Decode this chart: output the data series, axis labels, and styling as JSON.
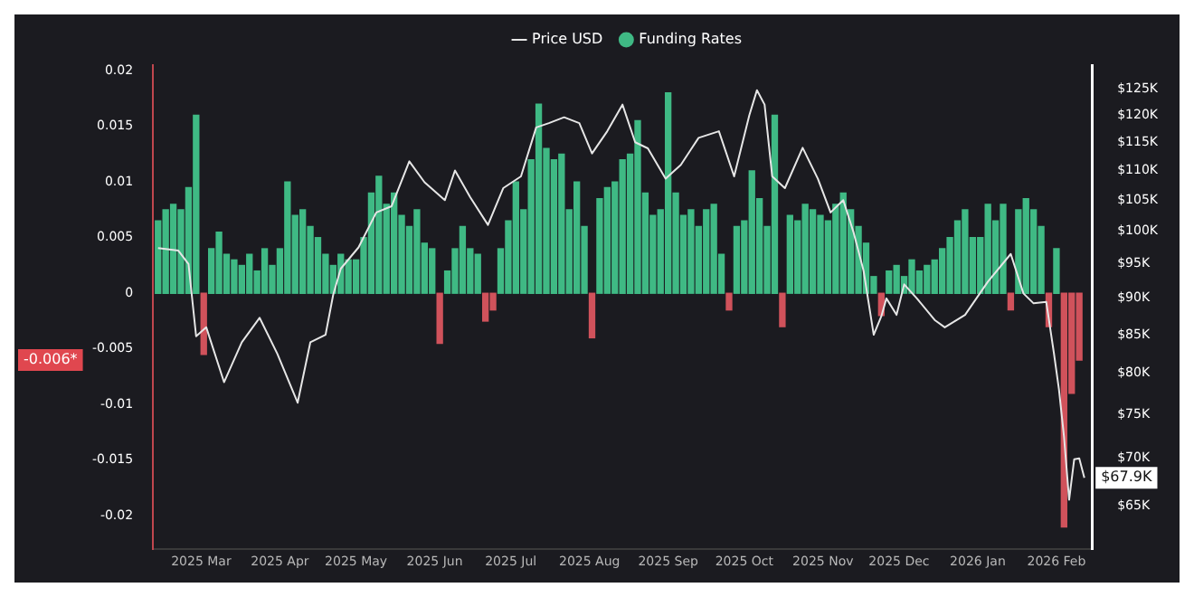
{
  "chart_data": {
    "type": "bar",
    "legend": "top",
    "log": "y2",
    "xlim": [
      "2025-02-10",
      "2026-02-15"
    ],
    "xticks": [
      {
        "value": "2025-03-01",
        "label": "2025 Mar"
      },
      {
        "value": "2025-04-01",
        "label": "2025 Apr"
      },
      {
        "value": "2025-05-01",
        "label": "2025 May"
      },
      {
        "value": "2025-06-01",
        "label": "2025 Jun"
      },
      {
        "value": "2025-07-01",
        "label": "2025 Jul"
      },
      {
        "value": "2025-08-01",
        "label": "2025 Aug"
      },
      {
        "value": "2025-09-01",
        "label": "2025 Sep"
      },
      {
        "value": "2025-10-01",
        "label": "2025 Oct"
      },
      {
        "value": "2025-11-01",
        "label": "2025 Nov"
      },
      {
        "value": "2025-12-01",
        "label": "2025 Dec"
      },
      {
        "value": "2026-01-01",
        "label": "2026 Jan"
      },
      {
        "value": "2026-02-01",
        "label": "2026 Feb"
      }
    ],
    "ylim": [
      -0.023,
      0.0205
    ],
    "yticks": [
      -0.02,
      -0.015,
      -0.01,
      -0.005,
      0,
      0.005,
      0.01,
      0.015,
      0.02
    ],
    "y2lim": [
      60700,
      129800
    ],
    "y2ticks": [
      {
        "value": 65000,
        "label": "$65K"
      },
      {
        "value": 70000,
        "label": "$70K"
      },
      {
        "value": 75000,
        "label": "$75K"
      },
      {
        "value": 80000,
        "label": "$80K"
      },
      {
        "value": 85000,
        "label": "$85K"
      },
      {
        "value": 90000,
        "label": "$90K"
      },
      {
        "value": 95000,
        "label": "$95K"
      },
      {
        "value": 100000,
        "label": "$100K"
      },
      {
        "value": 105000,
        "label": "$105K"
      },
      {
        "value": 110000,
        "label": "$110K"
      },
      {
        "value": 115000,
        "label": "$115K"
      },
      {
        "value": 120000,
        "label": "$120K"
      },
      {
        "value": 125000,
        "label": "$125K"
      }
    ],
    "annotations": [
      "$67.9K",
      "-0.006*"
    ],
    "series": [
      {
        "name": "Price USD",
        "type": "line",
        "axis": "y2",
        "color": "#e6e6e6",
        "x": [
          "2025-02-12",
          "2025-02-20",
          "2025-02-24",
          "2025-02-27",
          "2025-03-03",
          "2025-03-10",
          "2025-03-17",
          "2025-03-24",
          "2025-03-31",
          "2025-04-08",
          "2025-04-13",
          "2025-04-19",
          "2025-04-22",
          "2025-04-25",
          "2025-05-02",
          "2025-05-09",
          "2025-05-15",
          "2025-05-22",
          "2025-05-28",
          "2025-06-05",
          "2025-06-09",
          "2025-06-15",
          "2025-06-22",
          "2025-06-28",
          "2025-07-05",
          "2025-07-11",
          "2025-07-16",
          "2025-07-22",
          "2025-07-28",
          "2025-08-02",
          "2025-08-08",
          "2025-08-14",
          "2025-08-19",
          "2025-08-24",
          "2025-08-31",
          "2025-09-06",
          "2025-09-13",
          "2025-09-21",
          "2025-09-27",
          "2025-10-03",
          "2025-10-06",
          "2025-10-09",
          "2025-10-12",
          "2025-10-17",
          "2025-10-24",
          "2025-10-30",
          "2025-11-04",
          "2025-11-09",
          "2025-11-13",
          "2025-11-17",
          "2025-11-21",
          "2025-11-24",
          "2025-11-26",
          "2025-11-30",
          "2025-12-03",
          "2025-12-08",
          "2025-12-15",
          "2025-12-19",
          "2025-12-27",
          "2026-01-05",
          "2026-01-14",
          "2026-01-19",
          "2026-01-23",
          "2026-01-28",
          "2026-01-31",
          "2026-02-02",
          "2026-02-04",
          "2026-02-06",
          "2026-02-08",
          "2026-02-10",
          "2026-02-12"
        ],
        "values": [
          97400,
          97000,
          95000,
          84800,
          86000,
          78900,
          84000,
          87300,
          82500,
          76400,
          84000,
          85000,
          90500,
          94300,
          97500,
          103000,
          104000,
          111600,
          108000,
          105000,
          110000,
          105500,
          101000,
          107000,
          109000,
          117700,
          118500,
          119600,
          118500,
          113000,
          117000,
          122000,
          115000,
          113900,
          108600,
          111000,
          115800,
          117000,
          109000,
          120000,
          124800,
          122000,
          109000,
          107000,
          114000,
          108600,
          103000,
          105000,
          99900,
          94000,
          85000,
          87500,
          90000,
          87700,
          92000,
          90000,
          87000,
          86000,
          87700,
          92400,
          96500,
          90700,
          89300,
          89500,
          82600,
          78000,
          72400,
          65600,
          69900,
          70000,
          67900
        ]
      },
      {
        "name": "Funding Rates",
        "color": "#3fb984",
        "x": [
          "2025-02-12",
          "2025-02-15",
          "2025-02-18",
          "2025-02-21",
          "2025-02-24",
          "2025-02-27",
          "2025-03-02",
          "2025-03-05",
          "2025-03-08",
          "2025-03-11",
          "2025-03-14",
          "2025-03-17",
          "2025-03-20",
          "2025-03-23",
          "2025-03-26",
          "2025-03-29",
          "2025-04-01",
          "2025-04-04",
          "2025-04-07",
          "2025-04-10",
          "2025-04-13",
          "2025-04-16",
          "2025-04-19",
          "2025-04-22",
          "2025-04-25",
          "2025-04-28",
          "2025-05-01",
          "2025-05-04",
          "2025-05-07",
          "2025-05-10",
          "2025-05-13",
          "2025-05-16",
          "2025-05-19",
          "2025-05-22",
          "2025-05-25",
          "2025-05-28",
          "2025-05-31",
          "2025-06-03",
          "2025-06-06",
          "2025-06-09",
          "2025-06-12",
          "2025-06-15",
          "2025-06-18",
          "2025-06-21",
          "2025-06-24",
          "2025-06-27",
          "2025-06-30",
          "2025-07-03",
          "2025-07-06",
          "2025-07-09",
          "2025-07-12",
          "2025-07-15",
          "2025-07-18",
          "2025-07-21",
          "2025-07-24",
          "2025-07-27",
          "2025-07-30",
          "2025-08-02",
          "2025-08-05",
          "2025-08-08",
          "2025-08-11",
          "2025-08-14",
          "2025-08-17",
          "2025-08-20",
          "2025-08-23",
          "2025-08-26",
          "2025-08-29",
          "2025-09-01",
          "2025-09-04",
          "2025-09-07",
          "2025-09-10",
          "2025-09-13",
          "2025-09-16",
          "2025-09-19",
          "2025-09-22",
          "2025-09-25",
          "2025-09-28",
          "2025-10-01",
          "2025-10-04",
          "2025-10-07",
          "2025-10-10",
          "2025-10-13",
          "2025-10-16",
          "2025-10-19",
          "2025-10-22",
          "2025-10-25",
          "2025-10-28",
          "2025-10-31",
          "2025-11-03",
          "2025-11-06",
          "2025-11-09",
          "2025-11-12",
          "2025-11-15",
          "2025-11-18",
          "2025-11-21",
          "2025-11-24",
          "2025-11-27",
          "2025-11-30",
          "2025-12-03",
          "2025-12-06",
          "2025-12-09",
          "2025-12-12",
          "2025-12-15",
          "2025-12-18",
          "2025-12-21",
          "2025-12-24",
          "2025-12-27",
          "2025-12-30",
          "2026-01-02",
          "2026-01-05",
          "2026-01-08",
          "2026-01-11",
          "2026-01-14",
          "2026-01-17",
          "2026-01-20",
          "2026-01-23",
          "2026-01-26",
          "2026-01-29",
          "2026-02-01",
          "2026-02-04",
          "2026-02-07",
          "2026-02-10"
        ],
        "values": [
          0.0065,
          0.0075,
          0.008,
          0.0075,
          0.0095,
          0.016,
          -0.0055,
          0.004,
          0.0055,
          0.0035,
          0.003,
          0.0025,
          0.0035,
          0.002,
          0.004,
          0.0025,
          0.004,
          0.01,
          0.007,
          0.0075,
          0.006,
          0.005,
          0.0035,
          0.0025,
          0.0035,
          0.003,
          0.003,
          0.005,
          0.009,
          0.0105,
          0.008,
          0.009,
          0.007,
          0.006,
          0.0075,
          0.0045,
          0.004,
          -0.0045,
          0.002,
          0.004,
          0.006,
          0.004,
          0.0035,
          -0.0025,
          -0.0015,
          0.004,
          0.0065,
          0.01,
          0.0075,
          0.012,
          0.017,
          0.013,
          0.012,
          0.0125,
          0.0075,
          0.01,
          0.006,
          -0.004,
          0.0085,
          0.0095,
          0.01,
          0.012,
          0.0125,
          0.0155,
          0.009,
          0.007,
          0.0075,
          0.018,
          0.009,
          0.007,
          0.0075,
          0.006,
          0.0075,
          0.008,
          0.0035,
          -0.0015,
          0.006,
          0.0065,
          0.011,
          0.0085,
          0.006,
          0.016,
          -0.003,
          0.007,
          0.0065,
          0.008,
          0.0075,
          0.007,
          0.0065,
          0.008,
          0.009,
          0.0075,
          0.006,
          0.0045,
          0.0015,
          -0.002,
          0.002,
          0.0025,
          0.0015,
          0.003,
          0.002,
          0.0025,
          0.003,
          0.004,
          0.005,
          0.0065,
          0.0075,
          0.005,
          0.005,
          0.008,
          0.0065,
          0.008,
          -0.0015,
          0.0075,
          0.0085,
          0.0075,
          0.006,
          -0.003,
          0.004,
          -0.021,
          -0.009,
          -0.006
        ],
        "colors": [
          "#3fb984",
          "#3fb984",
          "#3fb984",
          "#3fb984",
          "#3fb984",
          "#3fb984",
          "#d0525b",
          "#3fb984",
          "#3fb984",
          "#3fb984",
          "#3fb984",
          "#3fb984",
          "#3fb984",
          "#3fb984",
          "#3fb984",
          "#3fb984",
          "#3fb984",
          "#3fb984",
          "#3fb984",
          "#3fb984",
          "#3fb984",
          "#3fb984",
          "#3fb984",
          "#3fb984",
          "#3fb984",
          "#3fb984",
          "#3fb984",
          "#3fb984",
          "#3fb984",
          "#3fb984",
          "#3fb984",
          "#3fb984",
          "#3fb984",
          "#3fb984",
          "#3fb984",
          "#3fb984",
          "#3fb984",
          "#d0525b",
          "#3fb984",
          "#3fb984",
          "#3fb984",
          "#3fb984",
          "#3fb984",
          "#d0525b",
          "#d0525b",
          "#3fb984",
          "#3fb984",
          "#3fb984",
          "#3fb984",
          "#3fb984",
          "#3fb984",
          "#3fb984",
          "#3fb984",
          "#3fb984",
          "#3fb984",
          "#3fb984",
          "#3fb984",
          "#d0525b",
          "#3fb984",
          "#3fb984",
          "#3fb984",
          "#3fb984",
          "#3fb984",
          "#3fb984",
          "#3fb984",
          "#3fb984",
          "#3fb984",
          "#3fb984",
          "#3fb984",
          "#3fb984",
          "#3fb984",
          "#3fb984",
          "#3fb984",
          "#3fb984",
          "#3fb984",
          "#d0525b",
          "#3fb984",
          "#3fb984",
          "#3fb984",
          "#3fb984",
          "#3fb984",
          "#3fb984",
          "#d0525b",
          "#3fb984",
          "#3fb984",
          "#3fb984",
          "#3fb984",
          "#3fb984",
          "#3fb984",
          "#3fb984",
          "#3fb984",
          "#3fb984",
          "#3fb984",
          "#3fb984",
          "#3fb984",
          "#d0525b",
          "#3fb984",
          "#3fb984",
          "#3fb984",
          "#3fb984",
          "#3fb984",
          "#3fb984",
          "#3fb984",
          "#3fb984",
          "#3fb984",
          "#3fb984",
          "#3fb984",
          "#3fb984",
          "#3fb984",
          "#3fb984",
          "#3fb984",
          "#3fb984",
          "#d0525b",
          "#3fb984",
          "#3fb984",
          "#3fb984",
          "#3fb984",
          "#d0525b",
          "#3fb984",
          "#d0525b",
          "#d0525b",
          "#d0525b"
        ]
      }
    ]
  }
}
